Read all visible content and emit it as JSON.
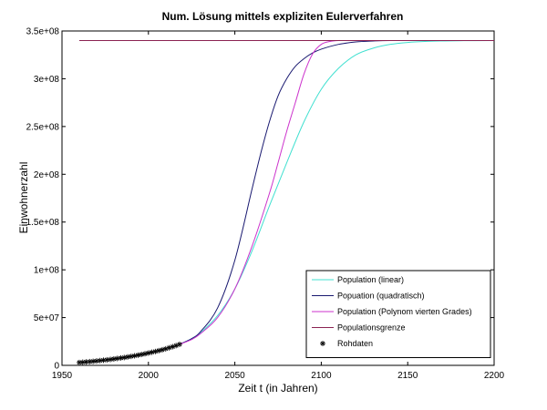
{
  "chart_data": {
    "type": "line",
    "title": "Num. Lösung mittels expliziten Eulerverfahren",
    "xlabel": "Zeit t (in Jahren)",
    "ylabel": "Einwohnerzahl",
    "xlim": [
      1950,
      2200
    ],
    "ylim": [
      0,
      350000000
    ],
    "x_ticks": [
      1950,
      2000,
      2050,
      2100,
      2150,
      2200
    ],
    "x_tick_labels": [
      "1950",
      "2000",
      "2050",
      "2100",
      "2150",
      "2200"
    ],
    "y_ticks": [
      0,
      50000000,
      100000000,
      150000000,
      200000000,
      250000000,
      300000000,
      350000000
    ],
    "y_tick_labels": [
      "0",
      "5e+07",
      "1e+08",
      "1.5e+08",
      "2e+08",
      "2.5e+08",
      "3e+08",
      "3.5e+08"
    ],
    "grid": false,
    "legend_position": "bottom-right",
    "series": [
      {
        "name": "Population (linear)",
        "color": "#40e0d0",
        "x": [
          2018,
          2025,
          2030,
          2040,
          2050,
          2060,
          2070,
          2080,
          2090,
          2100,
          2110,
          2120,
          2130,
          2140,
          2150,
          2160,
          2170,
          2180,
          2200
        ],
        "y": [
          22000000,
          28000000,
          34000000,
          52000000,
          80000000,
          120000000,
          167000000,
          212000000,
          255000000,
          289000000,
          311000000,
          325000000,
          332000000,
          336000000,
          338000000,
          339000000,
          339500000,
          339800000,
          340000000
        ]
      },
      {
        "name": "Popuation (quadratisch)",
        "color": "#191970",
        "x": [
          2018,
          2025,
          2030,
          2040,
          2050,
          2060,
          2065,
          2070,
          2075,
          2080,
          2085,
          2090,
          2095,
          2100,
          2110,
          2120,
          2130,
          2140,
          2160,
          2200
        ],
        "y": [
          22000000,
          28000000,
          35000000,
          60000000,
          110000000,
          185000000,
          222000000,
          255000000,
          282000000,
          300000000,
          313000000,
          321000000,
          327000000,
          331000000,
          336000000,
          338500000,
          339500000,
          340000000,
          340000000,
          340000000
        ]
      },
      {
        "name": "Population (Polynom vierten Grades)",
        "color": "#cc33cc",
        "x": [
          2018,
          2025,
          2030,
          2040,
          2050,
          2060,
          2070,
          2075,
          2080,
          2085,
          2090,
          2095,
          2100,
          2105,
          2110,
          2120,
          2200
        ],
        "y": [
          22000000,
          27000000,
          33000000,
          50000000,
          80000000,
          125000000,
          180000000,
          212000000,
          245000000,
          275000000,
          305000000,
          326000000,
          336000000,
          339000000,
          340000000,
          340000000,
          340000000
        ]
      },
      {
        "name": "Populationsgrenze",
        "color": "#8b2252",
        "x": [
          1960,
          2200
        ],
        "y": [
          340000000,
          340000000
        ]
      }
    ],
    "raw_data": {
      "name": "Rohdaten",
      "marker": "*",
      "x": [
        1960,
        1962,
        1964,
        1966,
        1968,
        1970,
        1972,
        1974,
        1976,
        1978,
        1980,
        1982,
        1984,
        1986,
        1988,
        1990,
        1992,
        1994,
        1996,
        1998,
        2000,
        2002,
        2004,
        2006,
        2008,
        2010,
        2012,
        2014,
        2016,
        2018
      ],
      "y": [
        3000000,
        3300000,
        3600000,
        3900000,
        4200000,
        4600000,
        5000000,
        5400000,
        5800000,
        6200000,
        6700000,
        7200000,
        7700000,
        8200000,
        8800000,
        9400000,
        10000000,
        10700000,
        11400000,
        12100000,
        12900000,
        13700000,
        14500000,
        15400000,
        16300000,
        17300000,
        18400000,
        19500000,
        20700000,
        22000000
      ]
    }
  }
}
